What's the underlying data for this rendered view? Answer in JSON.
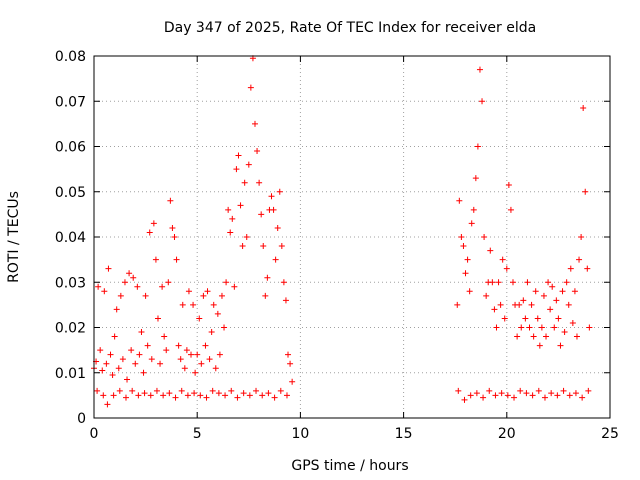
{
  "chart_data": {
    "type": "scatter",
    "title": "Day 347 of 2025, Rate Of TEC Index for receiver elda",
    "xlabel": "GPS time / hours",
    "ylabel": "ROTI / TECUs",
    "xlim": [
      0,
      25
    ],
    "ylim": [
      0,
      0.08
    ],
    "xticks": [
      0,
      5,
      10,
      15,
      20,
      25
    ],
    "xtick_labels": [
      "0",
      "5",
      "10",
      "15",
      "20",
      "25"
    ],
    "yticks": [
      0,
      0.01,
      0.02,
      0.03,
      0.04,
      0.05,
      0.06,
      0.07,
      0.08
    ],
    "ytick_labels": [
      "0",
      "0.01",
      "0.02",
      "0.03",
      "0.04",
      "0.05",
      "0.06",
      "0.07",
      "0.08"
    ],
    "grid": true,
    "marker": "plus",
    "marker_color": "#ff0000",
    "series": [
      {
        "points": [
          [
            0.0,
            0.011
          ],
          [
            0.1,
            0.0125
          ],
          [
            0.2,
            0.029
          ],
          [
            0.3,
            0.015
          ],
          [
            0.4,
            0.0105
          ],
          [
            0.5,
            0.028
          ],
          [
            0.6,
            0.012
          ],
          [
            0.7,
            0.033
          ],
          [
            0.8,
            0.014
          ],
          [
            0.9,
            0.0095
          ],
          [
            1.0,
            0.018
          ],
          [
            1.1,
            0.024
          ],
          [
            1.2,
            0.011
          ],
          [
            1.3,
            0.027
          ],
          [
            1.4,
            0.013
          ],
          [
            1.5,
            0.03
          ],
          [
            1.6,
            0.0085
          ],
          [
            1.7,
            0.032
          ],
          [
            1.8,
            0.015
          ],
          [
            1.9,
            0.031
          ],
          [
            2.0,
            0.012
          ],
          [
            2.1,
            0.029
          ],
          [
            2.2,
            0.014
          ],
          [
            2.3,
            0.019
          ],
          [
            2.4,
            0.01
          ],
          [
            2.5,
            0.027
          ],
          [
            2.6,
            0.016
          ],
          [
            2.7,
            0.041
          ],
          [
            2.8,
            0.013
          ],
          [
            2.9,
            0.043
          ],
          [
            3.0,
            0.035
          ],
          [
            3.1,
            0.022
          ],
          [
            3.2,
            0.012
          ],
          [
            3.3,
            0.029
          ],
          [
            3.4,
            0.018
          ],
          [
            3.5,
            0.015
          ],
          [
            3.6,
            0.03
          ],
          [
            3.7,
            0.048
          ],
          [
            3.8,
            0.042
          ],
          [
            3.9,
            0.04
          ],
          [
            4.0,
            0.035
          ],
          [
            4.1,
            0.016
          ],
          [
            4.2,
            0.013
          ],
          [
            4.3,
            0.025
          ],
          [
            4.4,
            0.011
          ],
          [
            4.5,
            0.015
          ],
          [
            4.6,
            0.028
          ],
          [
            4.7,
            0.014
          ],
          [
            4.8,
            0.025
          ],
          [
            4.9,
            0.01
          ],
          [
            5.0,
            0.014
          ],
          [
            5.1,
            0.022
          ],
          [
            5.2,
            0.012
          ],
          [
            5.3,
            0.027
          ],
          [
            5.4,
            0.016
          ],
          [
            5.5,
            0.028
          ],
          [
            5.6,
            0.013
          ],
          [
            5.7,
            0.019
          ],
          [
            5.8,
            0.025
          ],
          [
            5.9,
            0.011
          ],
          [
            6.0,
            0.023
          ],
          [
            6.1,
            0.014
          ],
          [
            6.2,
            0.027
          ],
          [
            6.3,
            0.02
          ],
          [
            6.4,
            0.03
          ],
          [
            6.5,
            0.046
          ],
          [
            6.6,
            0.041
          ],
          [
            6.7,
            0.044
          ],
          [
            6.8,
            0.029
          ],
          [
            6.9,
            0.055
          ],
          [
            7.0,
            0.058
          ],
          [
            7.1,
            0.047
          ],
          [
            7.2,
            0.038
          ],
          [
            7.3,
            0.052
          ],
          [
            7.4,
            0.04
          ],
          [
            7.5,
            0.056
          ],
          [
            7.6,
            0.073
          ],
          [
            7.7,
            0.0795
          ],
          [
            7.8,
            0.065
          ],
          [
            7.9,
            0.059
          ],
          [
            8.0,
            0.052
          ],
          [
            8.1,
            0.045
          ],
          [
            8.2,
            0.038
          ],
          [
            8.3,
            0.027
          ],
          [
            8.4,
            0.031
          ],
          [
            8.5,
            0.046
          ],
          [
            8.6,
            0.049
          ],
          [
            8.7,
            0.046
          ],
          [
            8.8,
            0.035
          ],
          [
            8.9,
            0.042
          ],
          [
            9.0,
            0.05
          ],
          [
            9.1,
            0.038
          ],
          [
            9.2,
            0.03
          ],
          [
            9.3,
            0.026
          ],
          [
            9.4,
            0.014
          ],
          [
            9.5,
            0.012
          ],
          [
            9.6,
            0.008
          ],
          [
            17.6,
            0.025
          ],
          [
            17.7,
            0.048
          ],
          [
            17.8,
            0.04
          ],
          [
            17.9,
            0.038
          ],
          [
            18.0,
            0.032
          ],
          [
            18.1,
            0.035
          ],
          [
            18.2,
            0.028
          ],
          [
            18.3,
            0.043
          ],
          [
            18.4,
            0.046
          ],
          [
            18.5,
            0.053
          ],
          [
            18.6,
            0.06
          ],
          [
            18.7,
            0.077
          ],
          [
            18.8,
            0.07
          ],
          [
            18.9,
            0.04
          ],
          [
            19.0,
            0.027
          ],
          [
            19.1,
            0.03
          ],
          [
            19.2,
            0.037
          ],
          [
            19.3,
            0.03
          ],
          [
            19.4,
            0.024
          ],
          [
            19.5,
            0.02
          ],
          [
            19.6,
            0.03
          ],
          [
            19.7,
            0.025
          ],
          [
            19.8,
            0.035
          ],
          [
            19.9,
            0.022
          ],
          [
            20.0,
            0.033
          ],
          [
            20.1,
            0.0515
          ],
          [
            20.2,
            0.046
          ],
          [
            20.3,
            0.03
          ],
          [
            20.4,
            0.025
          ],
          [
            20.5,
            0.018
          ],
          [
            20.6,
            0.025
          ],
          [
            20.7,
            0.02
          ],
          [
            20.8,
            0.026
          ],
          [
            20.9,
            0.022
          ],
          [
            21.0,
            0.03
          ],
          [
            21.1,
            0.02
          ],
          [
            21.2,
            0.025
          ],
          [
            21.3,
            0.018
          ],
          [
            21.4,
            0.028
          ],
          [
            21.5,
            0.022
          ],
          [
            21.6,
            0.016
          ],
          [
            21.7,
            0.02
          ],
          [
            21.8,
            0.027
          ],
          [
            21.9,
            0.018
          ],
          [
            22.0,
            0.03
          ],
          [
            22.1,
            0.024
          ],
          [
            22.2,
            0.029
          ],
          [
            22.3,
            0.02
          ],
          [
            22.4,
            0.026
          ],
          [
            22.5,
            0.022
          ],
          [
            22.6,
            0.016
          ],
          [
            22.7,
            0.028
          ],
          [
            22.8,
            0.019
          ],
          [
            22.9,
            0.03
          ],
          [
            23.0,
            0.025
          ],
          [
            23.1,
            0.033
          ],
          [
            23.2,
            0.021
          ],
          [
            23.3,
            0.028
          ],
          [
            23.4,
            0.018
          ],
          [
            23.5,
            0.035
          ],
          [
            23.6,
            0.04
          ],
          [
            23.7,
            0.0685
          ],
          [
            23.8,
            0.05
          ],
          [
            23.9,
            0.033
          ],
          [
            24.0,
            0.02
          ],
          [
            0.15,
            0.006
          ],
          [
            0.45,
            0.005
          ],
          [
            0.65,
            0.003
          ],
          [
            0.95,
            0.005
          ],
          [
            1.25,
            0.006
          ],
          [
            1.55,
            0.0045
          ],
          [
            1.85,
            0.006
          ],
          [
            2.15,
            0.005
          ],
          [
            2.45,
            0.0055
          ],
          [
            2.75,
            0.005
          ],
          [
            3.05,
            0.006
          ],
          [
            3.35,
            0.005
          ],
          [
            3.65,
            0.0055
          ],
          [
            3.95,
            0.0045
          ],
          [
            4.25,
            0.006
          ],
          [
            4.55,
            0.005
          ],
          [
            4.85,
            0.0055
          ],
          [
            5.15,
            0.005
          ],
          [
            5.45,
            0.0045
          ],
          [
            5.75,
            0.006
          ],
          [
            6.05,
            0.0055
          ],
          [
            6.35,
            0.005
          ],
          [
            6.65,
            0.006
          ],
          [
            6.95,
            0.0045
          ],
          [
            7.25,
            0.0055
          ],
          [
            7.55,
            0.005
          ],
          [
            7.85,
            0.006
          ],
          [
            8.15,
            0.005
          ],
          [
            8.45,
            0.0055
          ],
          [
            8.75,
            0.0045
          ],
          [
            9.05,
            0.006
          ],
          [
            9.35,
            0.005
          ],
          [
            17.65,
            0.006
          ],
          [
            17.95,
            0.004
          ],
          [
            18.25,
            0.005
          ],
          [
            18.55,
            0.0055
          ],
          [
            18.85,
            0.0045
          ],
          [
            19.15,
            0.006
          ],
          [
            19.45,
            0.005
          ],
          [
            19.75,
            0.0055
          ],
          [
            20.05,
            0.005
          ],
          [
            20.35,
            0.0045
          ],
          [
            20.65,
            0.006
          ],
          [
            20.95,
            0.0055
          ],
          [
            21.25,
            0.005
          ],
          [
            21.55,
            0.006
          ],
          [
            21.85,
            0.0045
          ],
          [
            22.15,
            0.0055
          ],
          [
            22.45,
            0.005
          ],
          [
            22.75,
            0.006
          ],
          [
            23.05,
            0.005
          ],
          [
            23.35,
            0.0055
          ],
          [
            23.65,
            0.0045
          ],
          [
            23.95,
            0.006
          ]
        ]
      }
    ]
  }
}
